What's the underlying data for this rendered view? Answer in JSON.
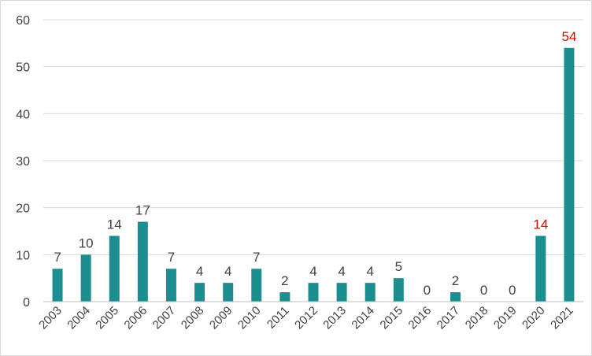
{
  "chart_data": {
    "type": "bar",
    "title": "",
    "xlabel": "",
    "ylabel": "",
    "categories": [
      "2003",
      "2004",
      "2005",
      "2006",
      "2007",
      "2008",
      "2009",
      "2010",
      "2011",
      "2012",
      "2013",
      "2014",
      "2015",
      "2016",
      "2017",
      "2018",
      "2019",
      "2020",
      "2021"
    ],
    "values": [
      7,
      10,
      14,
      17,
      7,
      4,
      4,
      7,
      2,
      4,
      4,
      4,
      5,
      0,
      2,
      0,
      0,
      14,
      54
    ],
    "highlight_categories": [
      "2020",
      "2021"
    ],
    "ylim": [
      0,
      60
    ],
    "yticks": [
      0,
      10,
      20,
      30,
      40,
      50,
      60
    ],
    "grid": true,
    "legend": "none",
    "colors": {
      "bar": "#1b8f8f",
      "label": "#404040",
      "highlight_label": "#e00000"
    }
  }
}
